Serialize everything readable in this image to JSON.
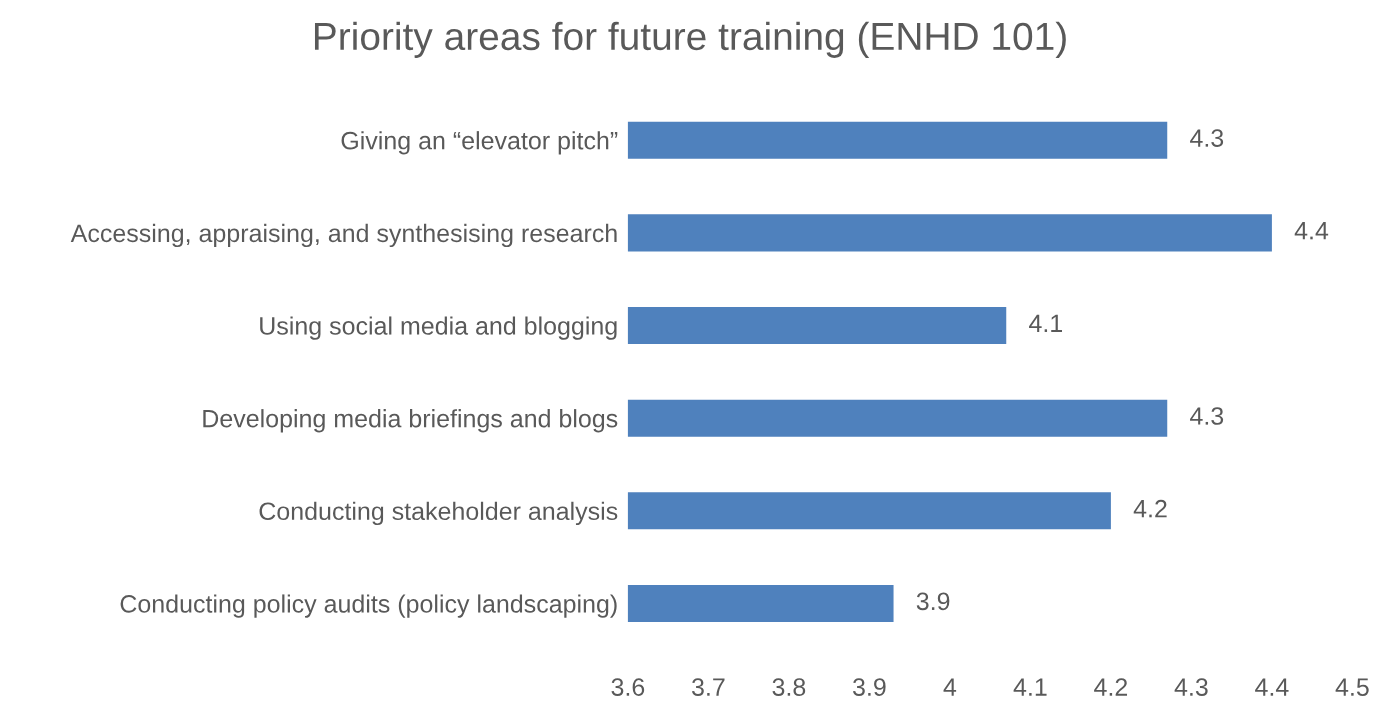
{
  "chart_data": {
    "type": "bar",
    "orientation": "horizontal",
    "title": "Priority areas for future training (ENHD 101)",
    "categories": [
      "Giving an “elevator pitch”",
      "Accessing, appraising, and synthesising research",
      "Using social media and blogging",
      "Developing media briefings and blogs",
      "Conducting stakeholder analysis",
      "Conducting policy audits (policy landscaping)"
    ],
    "values": [
      4.27,
      4.4,
      4.07,
      4.27,
      4.2,
      3.93
    ],
    "value_labels": [
      "4.3",
      "4.4",
      "4.1",
      "4.3",
      "4.2",
      "3.9"
    ],
    "color": "#4f81bd",
    "xlim": [
      3.6,
      4.5
    ],
    "xticks": [
      3.6,
      3.7,
      3.8,
      3.9,
      4,
      4.1,
      4.2,
      4.3,
      4.4,
      4.5
    ],
    "grid": false,
    "legend": false
  }
}
